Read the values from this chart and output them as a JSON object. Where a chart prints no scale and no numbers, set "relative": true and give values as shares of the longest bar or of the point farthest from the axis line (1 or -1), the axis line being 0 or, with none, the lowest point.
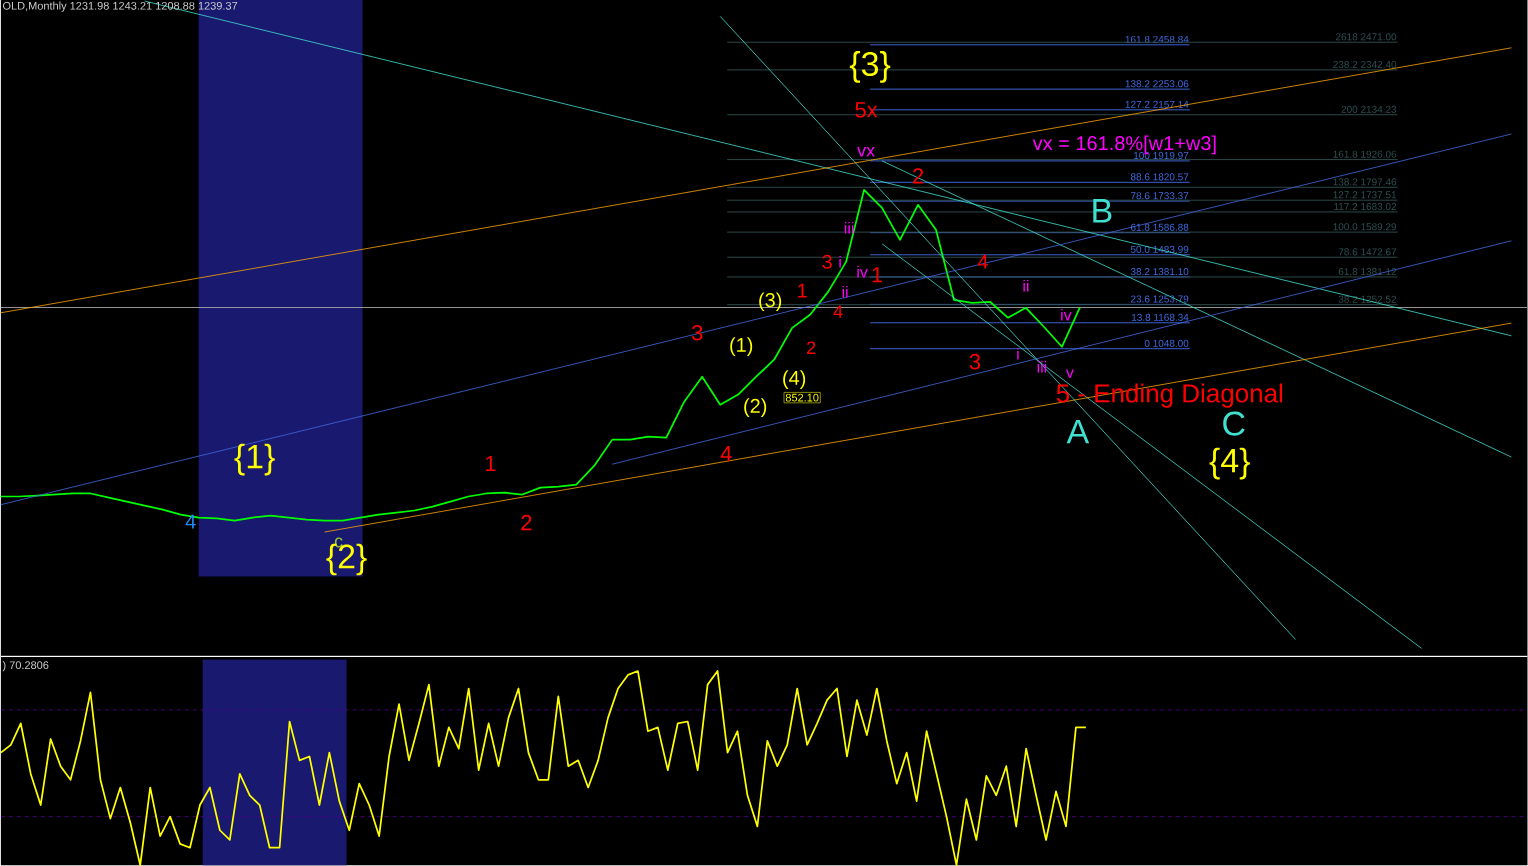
{
  "chart_data": [
    {
      "type": "line",
      "title": "OLD,Monthly 1231.98 1243.21 1208.88 1239.37",
      "ylim": [
        -371,
        2667
      ],
      "tick_labels": false,
      "categories": [
        null,
        null,
        null,
        null,
        null,
        null,
        null,
        null,
        null,
        null,
        null,
        null,
        null,
        null,
        null,
        null,
        null,
        null,
        null,
        null,
        null,
        null,
        null,
        null,
        null,
        null,
        null,
        null,
        null,
        null,
        null,
        null,
        null,
        null,
        null,
        null,
        null,
        null,
        null,
        null,
        null,
        null,
        null,
        null,
        null,
        null,
        null,
        null,
        null,
        null,
        null,
        null,
        null,
        null,
        null,
        null,
        null,
        null,
        null,
        null,
        null,
        null,
        null,
        null,
        null,
        null,
        null,
        null,
        null,
        null,
        null,
        null,
        null,
        null,
        null,
        null,
        null,
        null,
        null,
        null,
        null,
        null,
        null,
        null,
        null
      ],
      "series": [
        {
          "color": "#00ff00",
          "values": [
            362,
            362,
            366,
            371,
            376,
            376,
            357,
            338,
            320,
            301,
            278,
            264,
            260,
            250,
            264,
            273,
            264,
            255,
            250,
            250,
            264,
            278,
            287,
            297,
            315,
            338,
            362,
            376,
            380,
            371,
            403,
            408,
            417,
            505,
            626,
            626,
            640,
            635,
            802,
            918,
            788,
            835,
            918,
            997,
            1145,
            1206,
            1312,
            1451,
            1785,
            1702,
            1553,
            1716,
            1600,
            1275,
            1261,
            1266,
            1192,
            1238,
            1150,
            1057,
            1239,
            null,
            null,
            null,
            null,
            null,
            null,
            null,
            null,
            null,
            null,
            null,
            null,
            null,
            null,
            null,
            null,
            null,
            null,
            null,
            null,
            null,
            null,
            null,
            null
          ]
        },
        {
          "type": "line",
          "color": "#40e0d0",
          "values": [
            null,
            null,
            null,
            null,
            null,
            null,
            null,
            null,
            2662,
            null,
            null,
            null,
            null,
            null,
            null,
            null,
            null,
            null,
            null,
            null,
            null,
            null,
            null,
            null,
            null,
            null,
            null,
            null,
            null,
            null,
            null,
            null,
            null,
            null,
            null,
            null,
            null,
            null,
            null,
            null,
            null,
            null,
            null,
            null,
            null,
            null,
            null,
            null,
            null,
            null,
            null,
            null,
            null,
            null,
            null,
            null,
            null,
            null,
            null,
            null,
            null,
            null,
            null,
            null,
            null,
            null,
            null,
            null,
            null,
            null,
            null,
            null,
            null,
            null,
            null,
            null,
            null,
            null,
            null,
            null,
            null,
            null,
            null,
            null,
            1108
          ]
        },
        {
          "type": "line",
          "color": "#40e0d0",
          "values": [
            null,
            null,
            null,
            null,
            null,
            null,
            null,
            null,
            null,
            null,
            null,
            null,
            null,
            null,
            null,
            null,
            null,
            null,
            null,
            null,
            null,
            null,
            null,
            null,
            null,
            null,
            null,
            null,
            null,
            null,
            null,
            null,
            null,
            null,
            null,
            null,
            null,
            null,
            null,
            null,
            2591,
            null,
            null,
            null,
            null,
            null,
            null,
            null,
            null,
            null,
            null,
            null,
            null,
            null,
            null,
            null,
            null,
            null,
            null,
            null,
            null,
            null,
            null,
            null,
            null,
            null,
            null,
            null,
            null,
            null,
            null,
            null,
            -302,
            null,
            null,
            null,
            null,
            null,
            null,
            null,
            null,
            null,
            null,
            null,
            null
          ]
        },
        {
          "type": "line",
          "color": "#40e0d0",
          "values": [
            null,
            null,
            null,
            null,
            null,
            null,
            null,
            null,
            null,
            null,
            null,
            null,
            null,
            null,
            null,
            null,
            null,
            null,
            null,
            null,
            null,
            null,
            null,
            null,
            null,
            null,
            null,
            null,
            null,
            null,
            null,
            null,
            null,
            null,
            null,
            null,
            null,
            null,
            null,
            null,
            null,
            null,
            null,
            null,
            null,
            null,
            null,
            null,
            null,
            1920,
            null,
            null,
            null,
            null,
            null,
            null,
            null,
            null,
            null,
            null,
            null,
            null,
            null,
            null,
            null,
            null,
            null,
            null,
            null,
            null,
            null,
            null,
            null,
            null,
            null,
            null,
            null,
            null,
            null,
            null,
            null,
            null,
            null,
            null,
            545
          ]
        },
        {
          "type": "line",
          "color": "#40e0d0",
          "values": [
            null,
            null,
            null,
            null,
            null,
            null,
            null,
            null,
            null,
            null,
            null,
            null,
            null,
            null,
            null,
            null,
            null,
            null,
            null,
            null,
            null,
            null,
            null,
            null,
            null,
            null,
            null,
            null,
            null,
            null,
            null,
            null,
            null,
            null,
            null,
            null,
            null,
            null,
            null,
            null,
            null,
            null,
            null,
            null,
            null,
            null,
            null,
            null,
            null,
            1535,
            null,
            null,
            null,
            null,
            null,
            null,
            null,
            null,
            null,
            null,
            null,
            null,
            null,
            null,
            null,
            null,
            null,
            null,
            null,
            null,
            null,
            null,
            null,
            null,
            null,
            null,
            null,
            null,
            null,
            -343,
            null,
            null,
            null,
            null,
            null
          ]
        },
        {
          "type": "line",
          "color": "#ffa500",
          "values": [
            1215,
            null,
            null,
            null,
            null,
            null,
            null,
            null,
            null,
            null,
            null,
            null,
            null,
            null,
            null,
            null,
            null,
            null,
            null,
            null,
            null,
            null,
            null,
            null,
            null,
            null,
            null,
            null,
            null,
            null,
            null,
            null,
            null,
            null,
            null,
            null,
            null,
            null,
            null,
            null,
            null,
            null,
            null,
            null,
            null,
            null,
            null,
            null,
            null,
            null,
            null,
            null,
            null,
            null,
            null,
            null,
            null,
            null,
            null,
            null,
            null,
            null,
            null,
            null,
            null,
            null,
            null,
            null,
            null,
            null,
            null,
            null,
            null,
            null,
            null,
            null,
            null,
            null,
            null,
            null,
            null,
            null,
            null,
            null,
            2445
          ]
        },
        {
          "type": "line",
          "color": "#ffa500",
          "values": [
            null,
            null,
            null,
            null,
            null,
            null,
            null,
            null,
            null,
            null,
            null,
            null,
            null,
            null,
            null,
            null,
            null,
            null,
            197,
            null,
            null,
            null,
            null,
            null,
            null,
            null,
            null,
            null,
            null,
            null,
            null,
            null,
            null,
            null,
            null,
            null,
            null,
            null,
            null,
            null,
            null,
            null,
            null,
            null,
            null,
            null,
            null,
            null,
            null,
            null,
            null,
            null,
            null,
            null,
            null,
            null,
            null,
            null,
            null,
            null,
            null,
            null,
            null,
            null,
            null,
            null,
            null,
            null,
            null,
            null,
            null,
            null,
            null,
            null,
            null,
            null,
            null,
            null,
            null,
            null,
            null,
            null,
            null,
            null,
            1167
          ]
        },
        {
          "type": "line",
          "color": "#4169e1",
          "values": [
            324,
            null,
            null,
            null,
            null,
            null,
            null,
            null,
            null,
            null,
            null,
            null,
            null,
            null,
            null,
            null,
            null,
            null,
            null,
            null,
            null,
            null,
            null,
            null,
            null,
            null,
            null,
            null,
            null,
            null,
            null,
            null,
            null,
            null,
            null,
            null,
            null,
            null,
            null,
            null,
            null,
            null,
            null,
            null,
            null,
            null,
            null,
            null,
            null,
            null,
            null,
            null,
            null,
            null,
            null,
            null,
            null,
            null,
            null,
            null,
            null,
            null,
            null,
            null,
            null,
            null,
            null,
            null,
            null,
            null,
            null,
            null,
            null,
            null,
            null,
            null,
            null,
            null,
            null,
            null,
            null,
            null,
            null,
            null,
            2045
          ]
        },
        {
          "type": "line",
          "color": "#4169e1",
          "values": [
            null,
            null,
            null,
            null,
            null,
            null,
            null,
            null,
            null,
            null,
            null,
            null,
            null,
            null,
            null,
            null,
            null,
            null,
            null,
            null,
            null,
            null,
            null,
            null,
            null,
            null,
            null,
            null,
            null,
            null,
            null,
            null,
            null,
            null,
            512,
            null,
            null,
            null,
            null,
            null,
            null,
            null,
            null,
            null,
            null,
            null,
            null,
            null,
            null,
            null,
            null,
            null,
            null,
            null,
            null,
            null,
            null,
            null,
            null,
            null,
            null,
            null,
            null,
            null,
            null,
            null,
            null,
            null,
            null,
            null,
            null,
            null,
            null,
            null,
            null,
            null,
            null,
            null,
            null,
            null,
            null,
            null,
            null,
            null,
            1549
          ]
        }
      ],
      "ref_lines": [
        {
          "axis": "y",
          "value": 1048.0,
          "label": "0 1048.00",
          "color": "#4169e1"
        },
        {
          "axis": "y",
          "value": 1168.34,
          "label": "13.8 1168.34",
          "color": "#4169e1"
        },
        {
          "axis": "y",
          "value": 1253.79,
          "label": "23.6 1253.79",
          "color": "#4169e1"
        },
        {
          "axis": "y",
          "value": 1381.1,
          "label": "38.2 1381.10",
          "color": "#4169e1"
        },
        {
          "axis": "y",
          "value": 1483.99,
          "label": "50.0 1483.99",
          "color": "#4169e1"
        },
        {
          "axis": "y",
          "value": 1586.88,
          "label": "61.8 1586.88",
          "color": "#4169e1"
        },
        {
          "axis": "y",
          "value": 1733.37,
          "label": "78.6 1733.37",
          "color": "#4169e1"
        },
        {
          "axis": "y",
          "value": 1820.57,
          "label": "88.6 1820.57",
          "color": "#4169e1"
        },
        {
          "axis": "y",
          "value": 1919.97,
          "label": "100 1919.97",
          "color": "#4169e1"
        },
        {
          "axis": "y",
          "value": 2157.14,
          "label": "127.2 2157.14",
          "color": "#4169e1"
        },
        {
          "axis": "y",
          "value": 2253.06,
          "label": "138.2 2253.06",
          "color": "#4169e1"
        },
        {
          "axis": "y",
          "value": 2458.84,
          "label": "161.8 2458.84",
          "color": "#4169e1"
        },
        {
          "axis": "y",
          "value": 2471.0,
          "label": "2618 2471.00",
          "color": "#2f4f4f"
        },
        {
          "axis": "y",
          "value": 2342.4,
          "label": "238.2 2342.40",
          "color": "#2f4f4f"
        },
        {
          "axis": "y",
          "value": 2134.23,
          "label": "200 2134.23",
          "color": "#2f4f4f"
        },
        {
          "axis": "y",
          "value": 1926.06,
          "label": "161.8 1926.06",
          "color": "#2f4f4f"
        },
        {
          "axis": "y",
          "value": 1797.46,
          "label": "138.2 1797.46",
          "color": "#2f4f4f"
        },
        {
          "axis": "y",
          "value": 1737.51,
          "label": "127.2 1737.51",
          "color": "#2f4f4f"
        },
        {
          "axis": "y",
          "value": 1683.02,
          "label": "117.2 1683.02",
          "color": "#2f4f4f"
        },
        {
          "axis": "y",
          "value": 1589.29,
          "label": "100.0 1589.29",
          "color": "#2f4f4f"
        },
        {
          "axis": "y",
          "value": 1472.67,
          "label": "78.6 1472.67",
          "color": "#2f4f4f"
        },
        {
          "axis": "y",
          "value": 1381.12,
          "label": "61.8 1381.12",
          "color": "#2f4f4f"
        },
        {
          "axis": "y",
          "value": 1252.52,
          "label": "38.2 1252.52",
          "color": "#2f4f4f"
        },
        {
          "axis": "y",
          "value": 1239.37,
          "color": "#a0a0a0"
        }
      ],
      "annotations": [
        "{3}",
        "5x",
        "vx",
        "vx = 161.8%[w1+w3]",
        "2",
        "B",
        "iii",
        "3",
        "i",
        "iv",
        "1",
        "4",
        "ii",
        "ii",
        "1",
        "(3)",
        "4",
        "iv",
        "3",
        "2",
        "(1)",
        "i",
        "3",
        "iii",
        "v",
        "(4)",
        "852.10",
        "(2)",
        "5 - Ending Diagonal",
        "A",
        "C",
        "{4}",
        "4",
        "1",
        "{1}",
        "2",
        "4",
        "c",
        "{2}"
      ]
    },
    {
      "type": "line",
      "title": ") 70.2806",
      "relative": true,
      "categories": [
        null,
        null,
        null,
        null,
        null,
        null,
        null,
        null,
        null,
        null,
        null,
        null,
        null,
        null,
        null,
        null,
        null,
        null,
        null,
        null,
        null,
        null,
        null,
        null,
        null,
        null,
        null,
        null,
        null,
        null,
        null,
        null,
        null,
        null,
        null,
        null,
        null,
        null,
        null,
        null,
        null,
        null,
        null,
        null,
        null,
        null,
        null,
        null,
        null,
        null,
        null,
        null,
        null,
        null,
        null,
        null,
        null,
        null,
        null,
        null,
        null,
        null,
        null,
        null,
        null,
        null,
        null,
        null,
        null,
        null,
        null,
        null,
        null,
        null,
        null,
        null,
        null,
        null,
        null,
        null,
        null,
        null,
        null,
        null,
        null,
        null,
        null,
        null,
        null,
        null,
        null,
        null,
        null,
        null,
        null,
        null,
        null,
        null,
        null,
        null,
        null,
        null,
        null,
        null,
        null,
        null,
        null,
        null,
        null,
        null
      ],
      "series": [
        {
          "color": "#ffff00",
          "values": [
            0.58,
            0.62,
            0.73,
            0.47,
            0.31,
            0.65,
            0.51,
            0.44,
            0.64,
            0.89,
            0.44,
            0.24,
            0.4,
            0.22,
            0.0,
            0.4,
            0.15,
            0.25,
            0.11,
            0.09,
            0.31,
            0.4,
            0.18,
            0.13,
            0.47,
            0.36,
            0.31,
            0.09,
            0.09,
            0.74,
            0.54,
            0.56,
            0.31,
            0.58,
            0.33,
            0.18,
            0.42,
            0.31,
            0.15,
            0.56,
            0.83,
            0.54,
            0.73,
            0.93,
            0.51,
            0.71,
            0.6,
            0.91,
            0.49,
            0.73,
            0.51,
            0.76,
            0.91,
            0.58,
            0.44,
            0.44,
            0.87,
            0.51,
            0.54,
            0.4,
            0.54,
            0.76,
            0.91,
            0.98,
            1.0,
            0.69,
            0.71,
            0.49,
            0.73,
            0.74,
            0.49,
            0.93,
            1.0,
            0.58,
            0.69,
            0.36,
            0.2,
            0.64,
            0.51,
            0.62,
            0.91,
            0.62,
            0.73,
            0.85,
            0.91,
            0.56,
            0.85,
            0.67,
            0.91,
            0.64,
            0.42,
            0.58,
            0.33,
            0.69,
            0.47,
            0.25,
            0.0,
            0.34,
            0.13,
            0.46,
            0.36,
            0.51,
            0.2,
            0.6,
            0.36,
            0.13,
            0.38,
            0.2,
            0.71,
            0.71
          ]
        }
      ],
      "ref_lines": [
        {
          "axis": "y",
          "value": 0.8,
          "color": "#4b0082",
          "line_style": "dashed"
        },
        {
          "axis": "y",
          "value": 0.25,
          "color": "#4b0082",
          "line_style": "dashed"
        }
      ]
    }
  ]
}
